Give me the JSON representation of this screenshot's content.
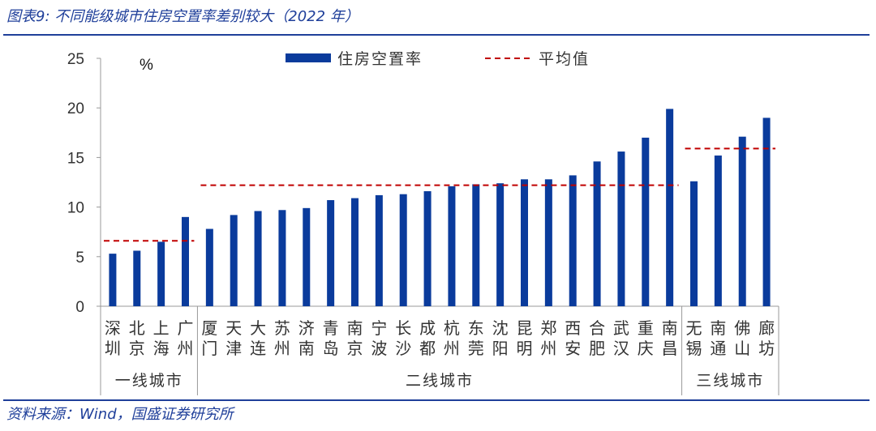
{
  "figure": {
    "title": "图表9:  不同能级城市住房空置率差别较大（2022 年）",
    "source": "资料来源：Wind，国盛证券研究所"
  },
  "colors": {
    "bar": "#0a3b9c",
    "average_line": "#c00000",
    "frame": "#1f3f9a",
    "axis": "#999999",
    "text": "#333333"
  },
  "chart_data": {
    "type": "bar",
    "unit_label": "%",
    "ylim": [
      0,
      25
    ],
    "yticks": [
      0,
      5,
      10,
      15,
      20,
      25
    ],
    "grid": false,
    "legend_position": "top",
    "legend": {
      "bar_label": "住房空置率",
      "line_label": "平均值"
    },
    "categories": [
      "深圳",
      "北京",
      "上海",
      "广州",
      "厦门",
      "天津",
      "大连",
      "苏州",
      "济南",
      "青岛",
      "南京",
      "宁波",
      "长沙",
      "成都",
      "杭州",
      "东莞",
      "沈阳",
      "昆明",
      "郑州",
      "西安",
      "合肥",
      "武汉",
      "重庆",
      "南昌",
      "无锡",
      "南通",
      "佛山",
      "廊坊"
    ],
    "series": [
      {
        "name": "住房空置率",
        "values": [
          5.3,
          5.6,
          6.5,
          9.0,
          7.8,
          9.2,
          9.6,
          9.7,
          9.9,
          10.7,
          10.9,
          11.2,
          11.3,
          11.6,
          12.1,
          12.3,
          12.4,
          12.8,
          12.8,
          13.2,
          14.6,
          15.6,
          17.0,
          19.9,
          12.6,
          15.2,
          17.1,
          19.0
        ]
      }
    ],
    "groups": [
      {
        "label": "一线城市",
        "start": 0,
        "end": 3,
        "average": 6.6
      },
      {
        "label": "二线城市",
        "start": 4,
        "end": 23,
        "average": 12.2
      },
      {
        "label": "三线城市",
        "start": 24,
        "end": 27,
        "average": 15.9
      }
    ]
  }
}
